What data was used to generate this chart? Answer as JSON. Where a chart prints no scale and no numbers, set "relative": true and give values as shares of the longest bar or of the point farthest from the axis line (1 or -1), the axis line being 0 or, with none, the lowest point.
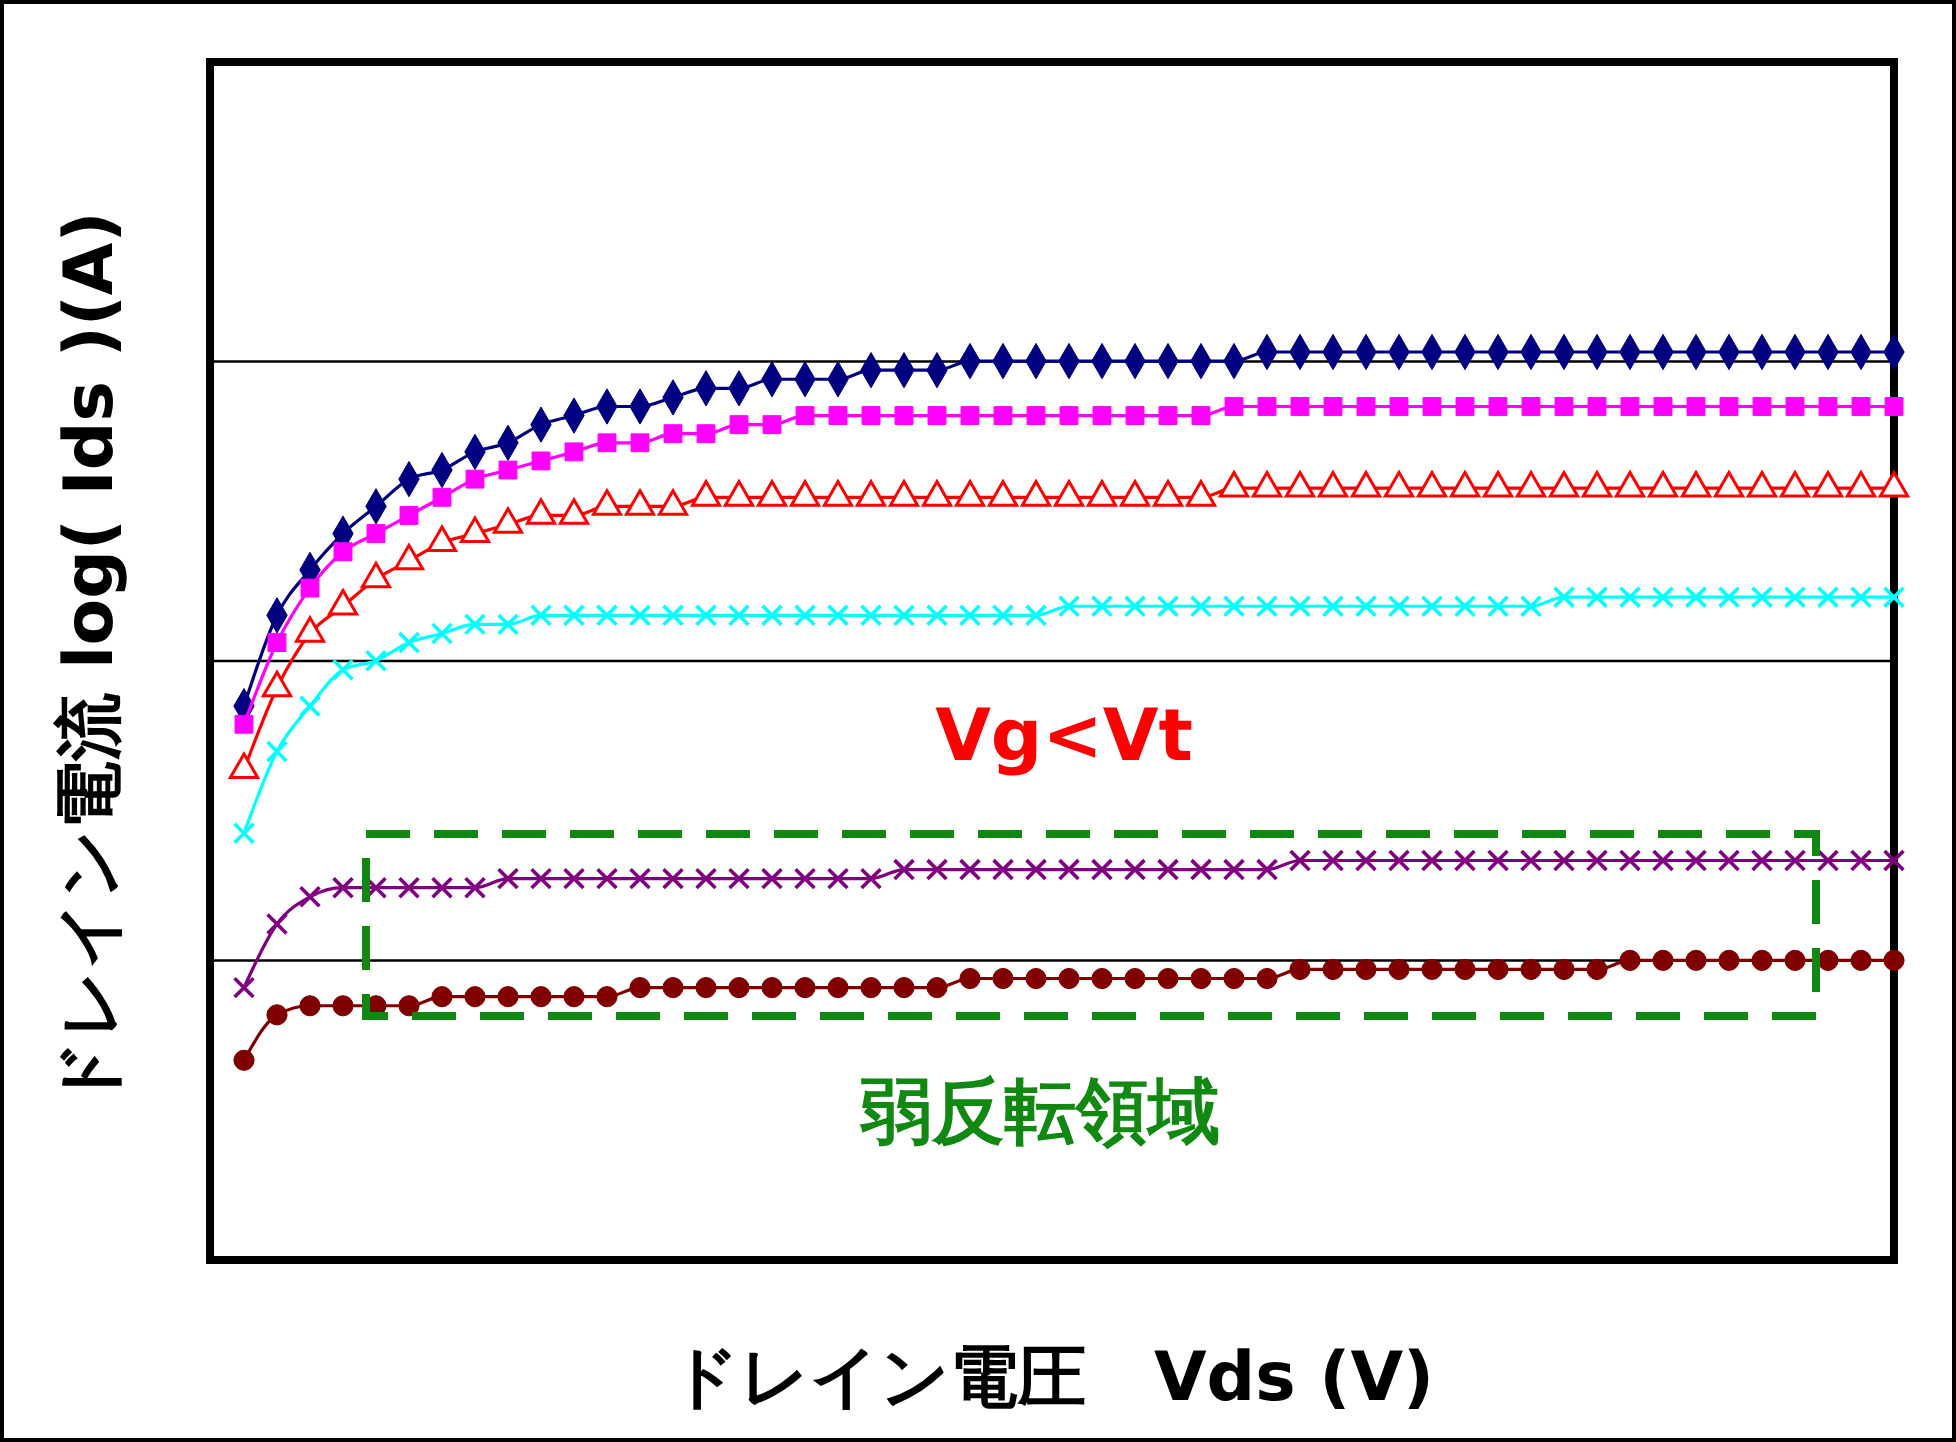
{
  "chart_data": {
    "type": "line",
    "relative": true,
    "xlabel": "ドレイン電圧　Vds (V)",
    "ylabel": "ドレイン電流 log( Ids )(A)",
    "grid": "y",
    "line_style": "solid",
    "annotations": [
      "Vg<Vt",
      "弱反転領域"
    ],
    "categories": [
      null,
      null,
      null,
      null,
      null,
      null,
      null,
      null,
      null,
      null,
      null,
      null,
      null,
      null,
      null,
      null,
      null,
      null,
      null,
      null,
      null,
      null,
      null,
      null,
      null,
      null,
      null,
      null,
      null,
      null,
      null,
      null,
      null,
      null,
      null,
      null,
      null,
      null,
      null,
      null,
      null,
      null,
      null,
      null,
      null,
      null,
      null,
      null,
      null,
      null,
      null
    ],
    "series": [
      {
        "color": "#000080",
        "marker": "diamond",
        "values": [
          0.61,
          0.71,
          0.76,
          0.8,
          0.83,
          0.86,
          0.87,
          0.89,
          0.9,
          0.92,
          0.93,
          0.94,
          0.94,
          0.95,
          0.96,
          0.96,
          0.97,
          0.97,
          0.97,
          0.98,
          0.98,
          0.98,
          0.99,
          0.99,
          0.99,
          0.99,
          0.99,
          0.99,
          0.99,
          0.99,
          0.99,
          1.0,
          1.0,
          1.0,
          1.0,
          1.0,
          1.0,
          1.0,
          1.0,
          1.0,
          1.0,
          1.0,
          1.0,
          1.0,
          1.0,
          1.0,
          1.0,
          1.0,
          1.0,
          1.0,
          1.0
        ]
      },
      {
        "color": "#ff00ff",
        "marker": "square",
        "values": [
          0.59,
          0.68,
          0.74,
          0.78,
          0.8,
          0.82,
          0.84,
          0.86,
          0.87,
          0.88,
          0.89,
          0.9,
          0.9,
          0.91,
          0.91,
          0.92,
          0.92,
          0.93,
          0.93,
          0.93,
          0.93,
          0.93,
          0.93,
          0.93,
          0.93,
          0.93,
          0.93,
          0.93,
          0.93,
          0.93,
          0.94,
          0.94,
          0.94,
          0.94,
          0.94,
          0.94,
          0.94,
          0.94,
          0.94,
          0.94,
          0.94,
          0.94,
          0.94,
          0.94,
          0.94,
          0.94,
          0.94,
          0.94,
          0.94,
          0.94,
          0.94
        ]
      },
      {
        "color": "#ff0000",
        "marker": "triangle",
        "values": [
          0.54,
          0.63,
          0.69,
          0.72,
          0.75,
          0.77,
          0.79,
          0.8,
          0.81,
          0.82,
          0.82,
          0.83,
          0.83,
          0.83,
          0.84,
          0.84,
          0.84,
          0.84,
          0.84,
          0.84,
          0.84,
          0.84,
          0.84,
          0.84,
          0.84,
          0.84,
          0.84,
          0.84,
          0.84,
          0.84,
          0.85,
          0.85,
          0.85,
          0.85,
          0.85,
          0.85,
          0.85,
          0.85,
          0.85,
          0.85,
          0.85,
          0.85,
          0.85,
          0.85,
          0.85,
          0.85,
          0.85,
          0.85,
          0.85,
          0.85,
          0.85
        ]
      },
      {
        "color": "#00ffff",
        "marker": "cross",
        "values": [
          0.47,
          0.56,
          0.61,
          0.65,
          0.66,
          0.68,
          0.69,
          0.7,
          0.7,
          0.71,
          0.71,
          0.71,
          0.71,
          0.71,
          0.71,
          0.71,
          0.71,
          0.71,
          0.71,
          0.71,
          0.71,
          0.71,
          0.71,
          0.71,
          0.71,
          0.72,
          0.72,
          0.72,
          0.72,
          0.72,
          0.72,
          0.72,
          0.72,
          0.72,
          0.72,
          0.72,
          0.72,
          0.72,
          0.72,
          0.72,
          0.73,
          0.73,
          0.73,
          0.73,
          0.73,
          0.73,
          0.73,
          0.73,
          0.73,
          0.73,
          0.73
        ]
      },
      {
        "color": "#800080",
        "marker": "cross",
        "values": [
          0.3,
          0.37,
          0.4,
          0.41,
          0.41,
          0.41,
          0.41,
          0.41,
          0.42,
          0.42,
          0.42,
          0.42,
          0.42,
          0.42,
          0.42,
          0.42,
          0.42,
          0.42,
          0.42,
          0.42,
          0.43,
          0.43,
          0.43,
          0.43,
          0.43,
          0.43,
          0.43,
          0.43,
          0.43,
          0.43,
          0.43,
          0.43,
          0.44,
          0.44,
          0.44,
          0.44,
          0.44,
          0.44,
          0.44,
          0.44,
          0.44,
          0.44,
          0.44,
          0.44,
          0.44,
          0.44,
          0.44,
          0.44,
          0.44,
          0.44,
          0.44
        ]
      },
      {
        "color": "#800000",
        "marker": "circle",
        "values": [
          0.22,
          0.27,
          0.28,
          0.28,
          0.28,
          0.28,
          0.29,
          0.29,
          0.29,
          0.29,
          0.29,
          0.29,
          0.3,
          0.3,
          0.3,
          0.3,
          0.3,
          0.3,
          0.3,
          0.3,
          0.3,
          0.3,
          0.31,
          0.31,
          0.31,
          0.31,
          0.31,
          0.31,
          0.31,
          0.31,
          0.31,
          0.31,
          0.32,
          0.32,
          0.32,
          0.32,
          0.32,
          0.32,
          0.32,
          0.32,
          0.32,
          0.32,
          0.33,
          0.33,
          0.33,
          0.33,
          0.33,
          0.33,
          0.33,
          0.33,
          0.33
        ]
      }
    ]
  }
}
